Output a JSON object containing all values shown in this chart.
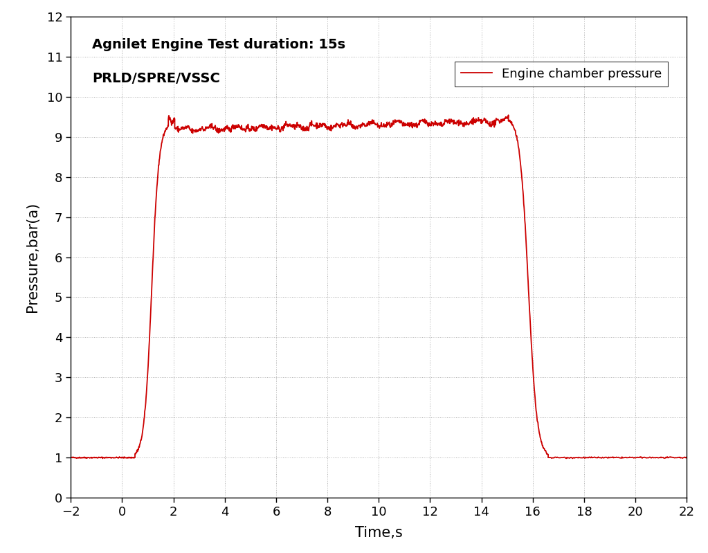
{
  "title": "",
  "xlabel": "Time,s",
  "ylabel": "Pressure,bar(a)",
  "xlim": [
    -2,
    22
  ],
  "ylim": [
    0,
    12
  ],
  "xticks": [
    -2,
    0,
    2,
    4,
    6,
    8,
    10,
    12,
    14,
    16,
    18,
    20,
    22
  ],
  "yticks": [
    0,
    1,
    2,
    3,
    4,
    5,
    6,
    7,
    8,
    9,
    10,
    11,
    12
  ],
  "line_color": "#cc0000",
  "line_width": 1.3,
  "legend_label": "Engine chamber pressure",
  "annotation_line1": "Agnilet Engine Test duration: 15s",
  "annotation_line2": "PRLD/SPRE/VSSC",
  "background_color": "#ffffff",
  "grid_color": "#b0b0b0",
  "annotation_fontsize": 14,
  "legend_fontsize": 13,
  "axis_label_fontsize": 15,
  "tick_fontsize": 13
}
